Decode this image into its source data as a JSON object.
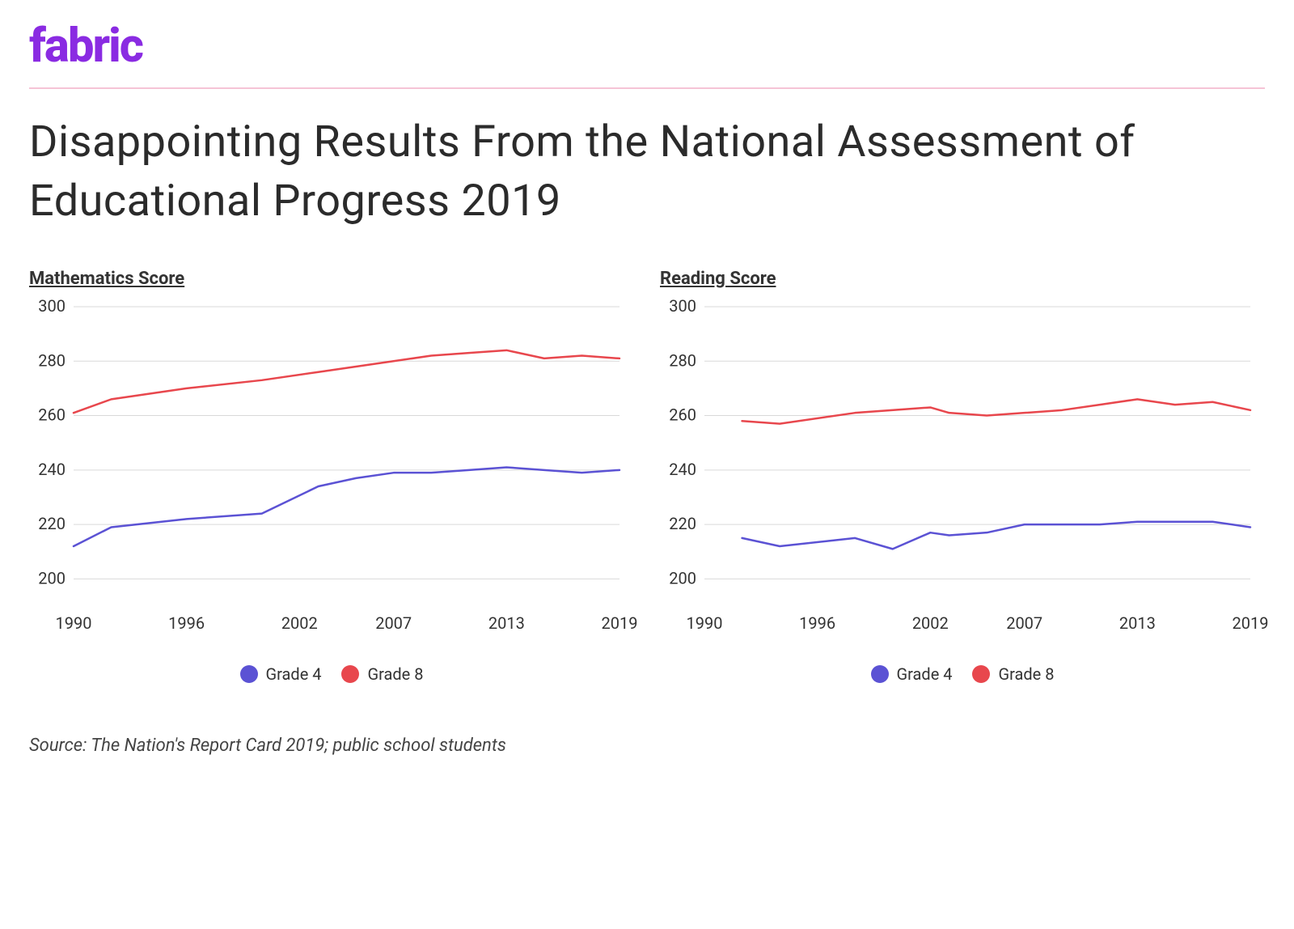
{
  "brand": {
    "logo_text": "fabric",
    "logo_color": "#8a2be2"
  },
  "divider_color": "#f6c4d6",
  "title": "Disappointing Results From the National Assessment of Educational Progress 2019",
  "title_fontsize": 54,
  "source": "Source: The Nation's Report Card 2019; public school students",
  "legend": {
    "items": [
      {
        "label": "Grade 4",
        "color": "#5b52d4"
      },
      {
        "label": "Grade 8",
        "color": "#e8474d"
      }
    ]
  },
  "axes": {
    "ylim": [
      190,
      300
    ],
    "yticks": [
      200,
      220,
      240,
      260,
      280,
      300
    ],
    "xlim": [
      1990,
      2019
    ],
    "xticks": [
      1990,
      1996,
      2002,
      2007,
      2013,
      2019
    ],
    "grid_color": "#d9d9d9",
    "axis_label_color": "#333333",
    "axis_label_fontsize": 20,
    "line_width": 2.5
  },
  "background_color": "#ffffff",
  "charts": [
    {
      "title": "Mathematics Score",
      "series": [
        {
          "name": "Grade 8",
          "color": "#e8474d",
          "points": [
            {
              "x": 1990,
              "y": 261
            },
            {
              "x": 1992,
              "y": 266
            },
            {
              "x": 1996,
              "y": 270
            },
            {
              "x": 2000,
              "y": 273
            },
            {
              "x": 2003,
              "y": 276
            },
            {
              "x": 2005,
              "y": 278
            },
            {
              "x": 2007,
              "y": 280
            },
            {
              "x": 2009,
              "y": 282
            },
            {
              "x": 2011,
              "y": 283
            },
            {
              "x": 2013,
              "y": 284
            },
            {
              "x": 2015,
              "y": 281
            },
            {
              "x": 2017,
              "y": 282
            },
            {
              "x": 2019,
              "y": 281
            }
          ]
        },
        {
          "name": "Grade 4",
          "color": "#5b52d4",
          "points": [
            {
              "x": 1990,
              "y": 212
            },
            {
              "x": 1992,
              "y": 219
            },
            {
              "x": 1996,
              "y": 222
            },
            {
              "x": 2000,
              "y": 224
            },
            {
              "x": 2003,
              "y": 234
            },
            {
              "x": 2005,
              "y": 237
            },
            {
              "x": 2007,
              "y": 239
            },
            {
              "x": 2009,
              "y": 239
            },
            {
              "x": 2011,
              "y": 240
            },
            {
              "x": 2013,
              "y": 241
            },
            {
              "x": 2015,
              "y": 240
            },
            {
              "x": 2017,
              "y": 239
            },
            {
              "x": 2019,
              "y": 240
            }
          ]
        }
      ]
    },
    {
      "title": "Reading Score",
      "series": [
        {
          "name": "Grade 8",
          "color": "#e8474d",
          "points": [
            {
              "x": 1992,
              "y": 258
            },
            {
              "x": 1994,
              "y": 257
            },
            {
              "x": 1998,
              "y": 261
            },
            {
              "x": 2002,
              "y": 263
            },
            {
              "x": 2003,
              "y": 261
            },
            {
              "x": 2005,
              "y": 260
            },
            {
              "x": 2007,
              "y": 261
            },
            {
              "x": 2009,
              "y": 262
            },
            {
              "x": 2011,
              "y": 264
            },
            {
              "x": 2013,
              "y": 266
            },
            {
              "x": 2015,
              "y": 264
            },
            {
              "x": 2017,
              "y": 265
            },
            {
              "x": 2019,
              "y": 262
            }
          ]
        },
        {
          "name": "Grade 4",
          "color": "#5b52d4",
          "points": [
            {
              "x": 1992,
              "y": 215
            },
            {
              "x": 1994,
              "y": 212
            },
            {
              "x": 1998,
              "y": 215
            },
            {
              "x": 2000,
              "y": 211
            },
            {
              "x": 2002,
              "y": 217
            },
            {
              "x": 2003,
              "y": 216
            },
            {
              "x": 2005,
              "y": 217
            },
            {
              "x": 2007,
              "y": 220
            },
            {
              "x": 2009,
              "y": 220
            },
            {
              "x": 2011,
              "y": 220
            },
            {
              "x": 2013,
              "y": 221
            },
            {
              "x": 2015,
              "y": 221
            },
            {
              "x": 2017,
              "y": 221
            },
            {
              "x": 2019,
              "y": 219
            }
          ]
        }
      ]
    }
  ]
}
